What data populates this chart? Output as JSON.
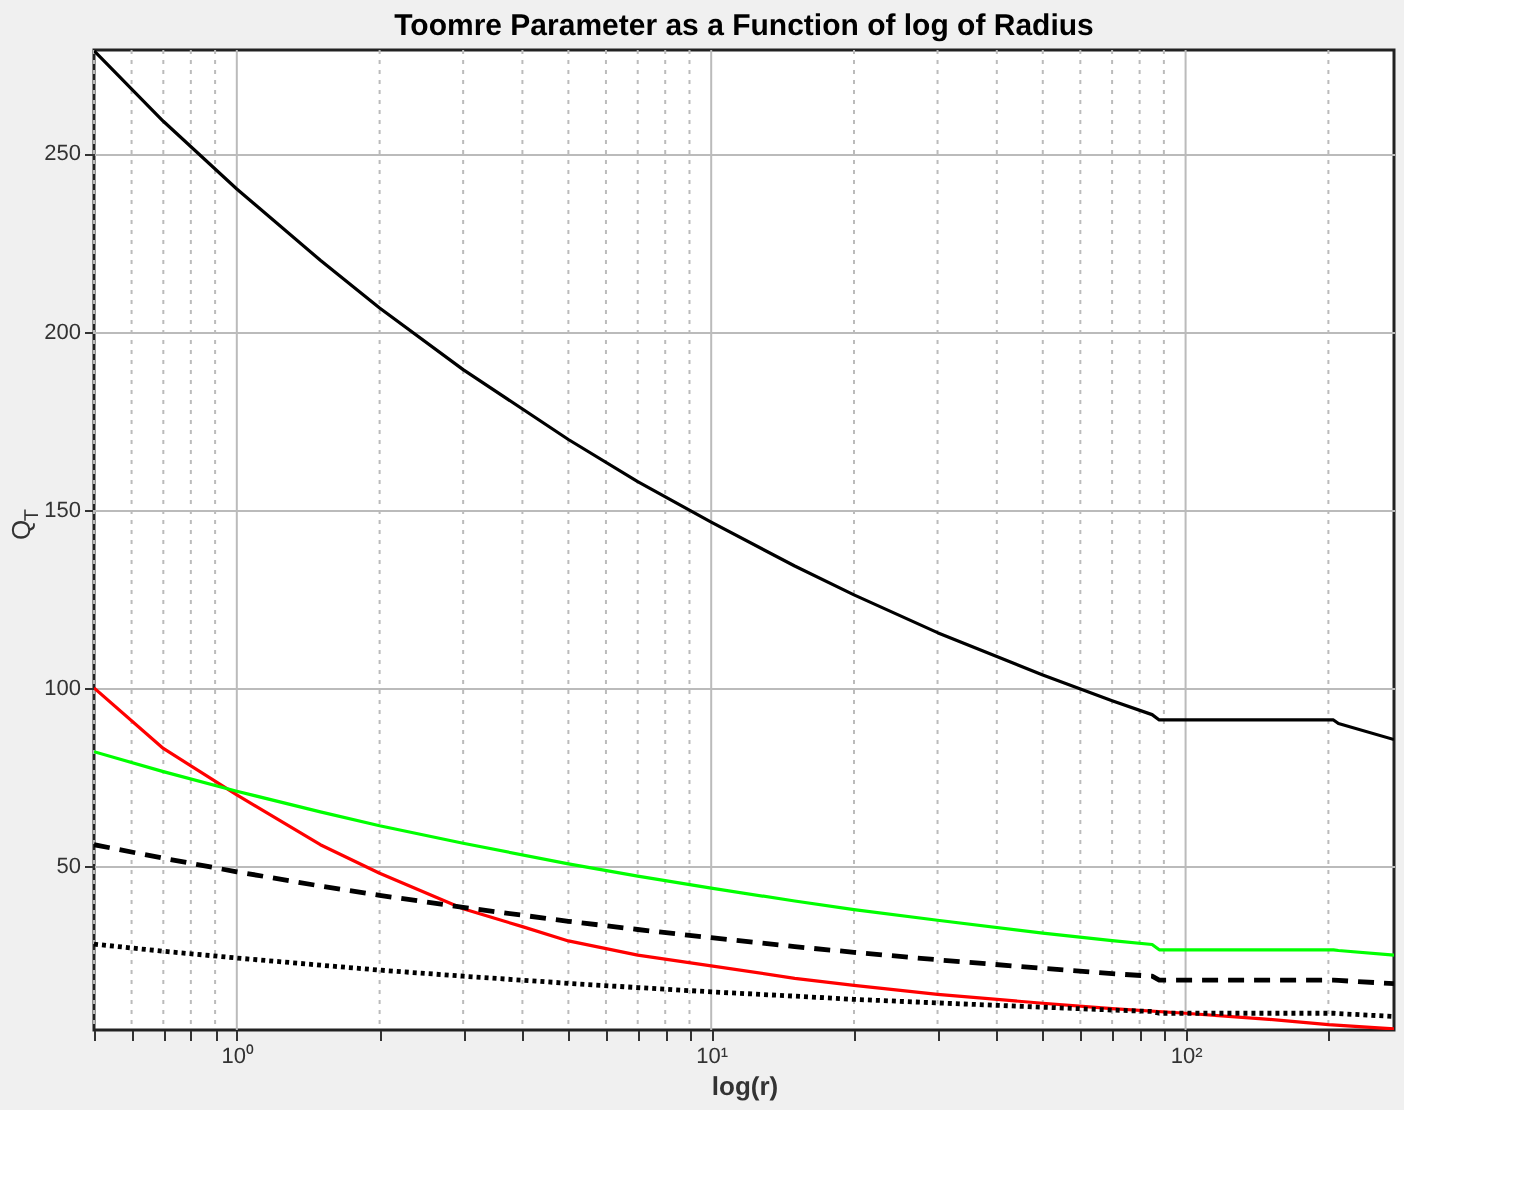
{
  "chart_data": {
    "type": "line",
    "title": "Toomre Parameter as a Function of log of Radius",
    "xlabel": "log(r)",
    "ylabel": "Q$_{T}$",
    "log": "x",
    "grid": true,
    "xlim": [
      0.5,
      275
    ],
    "ylim": [
      4,
      279
    ],
    "xticks": [
      {
        "value": 0.5,
        "label": null
      },
      {
        "value": 0.6,
        "label": null
      },
      {
        "value": 0.7,
        "label": null
      },
      {
        "value": 0.8,
        "label": null
      },
      {
        "value": 0.9,
        "label": null
      },
      {
        "value": 1,
        "label": "10⁰"
      },
      {
        "value": 2,
        "label": null
      },
      {
        "value": 3,
        "label": null
      },
      {
        "value": 4,
        "label": null
      },
      {
        "value": 5,
        "label": null
      },
      {
        "value": 6,
        "label": null
      },
      {
        "value": 7,
        "label": null
      },
      {
        "value": 8,
        "label": null
      },
      {
        "value": 9,
        "label": null
      },
      {
        "value": 10,
        "label": "10¹"
      },
      {
        "value": 20,
        "label": null
      },
      {
        "value": 30,
        "label": null
      },
      {
        "value": 40,
        "label": null
      },
      {
        "value": 50,
        "label": null
      },
      {
        "value": 60,
        "label": null
      },
      {
        "value": 70,
        "label": null
      },
      {
        "value": 80,
        "label": null
      },
      {
        "value": 90,
        "label": null
      },
      {
        "value": 100,
        "label": "10²"
      },
      {
        "value": 200,
        "label": null
      }
    ],
    "yticks": [
      50,
      100,
      150,
      200,
      250
    ],
    "x": [
      0.5,
      0.7,
      1,
      1.5,
      2,
      3,
      5,
      7,
      10,
      15,
      20,
      30,
      50,
      70,
      85,
      88,
      100,
      150,
      205,
      210,
      275
    ],
    "series": [
      {
        "color": "#000000",
        "line_style": "solid",
        "values": [
          278.8,
          259,
          240,
          220,
          206.6,
          189.3,
          169.7,
          157.9,
          146.5,
          134.2,
          126.1,
          115.5,
          103.6,
          96.4,
          92.5,
          91,
          91,
          91,
          91,
          90,
          85.5
        ]
      },
      {
        "color": "#ff0000",
        "line_style": "solid",
        "x": [
          0.5,
          0.7,
          1,
          1.5,
          2,
          3,
          4,
          5,
          7,
          10,
          15,
          20,
          30,
          50,
          70,
          100,
          150,
          200,
          275
        ],
        "values": [
          100,
          83,
          70,
          56,
          48,
          38,
          33,
          29,
          25,
          22,
          18.5,
          16.5,
          14,
          11.5,
          10,
          8.7,
          7,
          5.5,
          4.3
        ]
      },
      {
        "color": "#00ff00",
        "line_style": "solid",
        "values": [
          82.1,
          76.5,
          71,
          65.2,
          61.3,
          56.4,
          50.6,
          47.2,
          43.8,
          40.2,
          37.8,
          34.8,
          31.2,
          29.1,
          28,
          26.5,
          26.5,
          26.5,
          26.5,
          26.3,
          25
        ]
      },
      {
        "color": "#000000",
        "line_style": "dashed",
        "values": [
          56,
          52.2,
          48.4,
          44.4,
          41.8,
          38.4,
          34.5,
          32.2,
          29.9,
          27.4,
          25.8,
          23.7,
          21.3,
          19.8,
          19.1,
          18,
          18,
          18,
          18,
          17.9,
          17
        ]
      },
      {
        "color": "#000000",
        "line_style": "dotted",
        "values": [
          28.1,
          26.1,
          24.2,
          22.2,
          20.8,
          19.1,
          17.1,
          15.9,
          14.7,
          13.5,
          12.6,
          11.6,
          10.4,
          9.6,
          9.2,
          8.7,
          8.7,
          8.7,
          8.7,
          8.6,
          7.8
        ]
      }
    ]
  }
}
